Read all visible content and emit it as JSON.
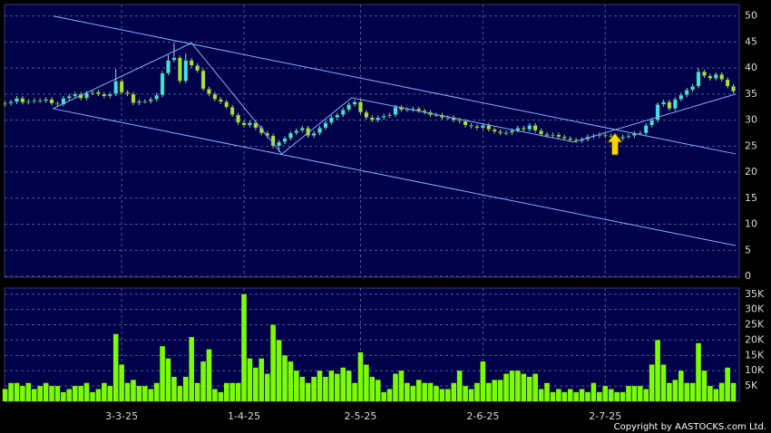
{
  "chart_data": [
    {
      "type": "candlestick",
      "open": [
        33.0,
        33.2,
        33.5,
        34.2,
        33.4,
        33.6,
        33.8,
        33.7,
        34.0,
        33.2,
        33.0,
        34.2,
        34.6,
        35.0,
        34.2,
        35.2,
        35.4,
        35.0,
        34.6,
        35.0,
        37.5,
        35.3,
        35.0,
        33.3,
        33.6,
        33.6,
        34.0,
        34.8,
        39.0,
        41.5,
        42.0,
        37.5,
        41.5,
        40.5,
        39.5,
        36.0,
        35.0,
        34.0,
        33.5,
        32.5,
        31.0,
        29.5,
        29.0,
        29.5,
        28.5,
        27.5,
        27.0,
        25.0,
        25.8,
        26.5,
        27.5,
        28.0,
        28.5,
        27.0,
        27.5,
        28.5,
        29.5,
        30.5,
        31.0,
        32.0,
        33.0,
        33.5,
        31.5,
        30.5,
        30.0,
        30.5,
        30.8,
        31.0,
        32.5,
        32.0,
        32.0,
        32.2,
        31.8,
        31.5,
        31.0,
        31.0,
        30.5,
        30.5,
        30.0,
        29.8,
        29.0,
        28.8,
        28.5,
        29.0,
        28.2,
        27.8,
        27.5,
        27.6,
        28.0,
        28.5,
        28.2,
        29.0,
        28.0,
        27.3,
        27.0,
        27.2,
        26.8,
        26.5,
        26.2,
        26.0,
        26.3,
        26.8,
        27.0,
        27.2,
        27.0,
        26.8,
        26.5,
        26.8,
        27.0,
        27.5,
        27.5,
        29.0,
        30.0,
        33.0,
        33.5,
        32.2,
        34.0,
        34.8,
        35.8,
        36.5,
        39.3,
        38.5,
        38.0,
        38.8,
        37.8,
        36.5
      ],
      "high": [
        33.6,
        33.9,
        34.6,
        34.6,
        34.0,
        34.2,
        34.2,
        34.4,
        34.4,
        33.6,
        34.6,
        35.0,
        35.4,
        35.4,
        35.6,
        35.8,
        35.8,
        35.4,
        35.4,
        39.8,
        37.9,
        35.7,
        35.4,
        34.0,
        34.0,
        34.4,
        35.2,
        39.4,
        42.5,
        44.8,
        42.4,
        42.8,
        41.9,
        40.9,
        39.9,
        36.4,
        35.4,
        34.4,
        33.9,
        32.9,
        31.4,
        29.9,
        29.9,
        29.9,
        28.9,
        27.9,
        27.4,
        26.2,
        26.9,
        27.9,
        28.4,
        28.9,
        28.9,
        27.9,
        28.9,
        29.9,
        30.9,
        31.4,
        32.4,
        33.4,
        33.9,
        33.9,
        31.9,
        30.9,
        30.9,
        31.2,
        31.4,
        32.9,
        32.9,
        32.4,
        32.6,
        32.6,
        32.2,
        31.9,
        31.4,
        31.4,
        30.9,
        30.9,
        30.4,
        30.2,
        29.4,
        29.2,
        29.4,
        29.4,
        28.6,
        28.2,
        28.0,
        28.4,
        28.9,
        28.9,
        29.4,
        29.4,
        28.4,
        27.7,
        27.6,
        27.6,
        27.2,
        26.9,
        26.6,
        26.7,
        27.2,
        27.4,
        27.6,
        27.6,
        27.4,
        27.2,
        27.2,
        27.4,
        27.9,
        27.9,
        29.4,
        30.4,
        33.4,
        33.9,
        33.9,
        34.4,
        35.2,
        36.2,
        36.9,
        40.0,
        39.7,
        38.9,
        39.2,
        39.2,
        38.2,
        36.9
      ],
      "low": [
        32.6,
        32.8,
        33.1,
        33.0,
        33.0,
        33.2,
        33.3,
        33.3,
        32.8,
        32.6,
        32.6,
        33.8,
        34.2,
        33.8,
        33.8,
        34.8,
        34.6,
        34.2,
        34.2,
        34.6,
        34.9,
        34.6,
        32.9,
        32.9,
        33.2,
        33.2,
        33.6,
        34.4,
        38.6,
        41.1,
        37.1,
        37.1,
        40.1,
        39.1,
        35.6,
        34.6,
        33.6,
        33.1,
        32.1,
        30.6,
        29.1,
        28.6,
        28.6,
        28.1,
        27.1,
        26.6,
        24.6,
        23.9,
        25.4,
        26.1,
        27.1,
        27.6,
        26.6,
        26.6,
        27.1,
        28.1,
        29.1,
        30.1,
        30.6,
        31.6,
        32.6,
        31.1,
        30.1,
        29.6,
        29.6,
        30.1,
        30.4,
        30.6,
        31.6,
        31.6,
        31.6,
        31.4,
        31.1,
        30.6,
        30.6,
        30.1,
        30.1,
        29.6,
        29.4,
        28.6,
        28.4,
        28.1,
        28.1,
        27.8,
        27.4,
        27.1,
        27.1,
        27.2,
        27.6,
        27.8,
        27.8,
        27.6,
        26.9,
        26.6,
        26.6,
        26.4,
        26.1,
        25.8,
        25.6,
        25.6,
        25.9,
        26.4,
        26.6,
        26.6,
        26.4,
        26.1,
        26.1,
        26.4,
        26.6,
        27.1,
        27.1,
        28.6,
        29.6,
        32.6,
        31.8,
        31.8,
        33.6,
        34.4,
        35.4,
        36.1,
        38.1,
        37.6,
        37.6,
        37.4,
        36.1,
        35.1
      ],
      "close": [
        33.2,
        33.5,
        34.2,
        33.4,
        33.6,
        33.8,
        33.7,
        34.0,
        33.2,
        33.0,
        34.2,
        34.6,
        35.0,
        34.2,
        35.2,
        35.4,
        35.0,
        34.6,
        35.0,
        37.5,
        35.3,
        35.0,
        33.3,
        33.6,
        33.6,
        34.0,
        34.8,
        39.0,
        41.5,
        42.0,
        37.5,
        41.5,
        40.5,
        39.5,
        36.0,
        35.0,
        34.0,
        33.5,
        32.5,
        31.0,
        29.5,
        29.0,
        29.5,
        28.5,
        27.5,
        27.0,
        25.0,
        25.8,
        26.5,
        27.5,
        28.0,
        28.5,
        27.0,
        27.5,
        28.5,
        29.5,
        30.5,
        31.0,
        32.0,
        33.0,
        33.5,
        31.5,
        30.5,
        30.0,
        30.5,
        30.8,
        31.0,
        32.5,
        32.0,
        32.0,
        32.2,
        31.8,
        31.5,
        31.0,
        31.0,
        30.5,
        30.5,
        30.0,
        29.8,
        29.0,
        28.8,
        28.5,
        29.0,
        28.2,
        27.8,
        27.5,
        27.6,
        28.0,
        28.5,
        28.2,
        29.0,
        28.0,
        27.3,
        27.0,
        27.2,
        26.8,
        26.5,
        26.2,
        26.0,
        26.3,
        26.8,
        27.0,
        27.2,
        27.0,
        26.8,
        26.5,
        26.8,
        27.0,
        27.5,
        27.5,
        29.0,
        30.0,
        33.0,
        33.5,
        32.2,
        34.0,
        34.8,
        35.8,
        36.5,
        39.3,
        38.5,
        38.0,
        38.8,
        37.8,
        36.5,
        35.5
      ],
      "up_color": "#40e0f0",
      "down_color": "#a8e040",
      "xlim": [
        -0.1,
        126
      ],
      "ylim": [
        0,
        52.2
      ],
      "yticks": [
        0,
        5,
        10,
        15,
        20,
        25,
        30,
        35,
        40,
        45,
        50
      ],
      "grid": true,
      "trend_lines": [
        [
          [
            8.2,
            50
          ],
          [
            125.4,
            23.5
          ]
        ],
        [
          [
            8.2,
            32.2
          ],
          [
            125.4,
            5.9
          ]
        ],
        [
          [
            8.2,
            32.2
          ],
          [
            32.0,
            44.8
          ],
          [
            47.5,
            23.5
          ],
          [
            59.5,
            34.3
          ],
          [
            97.6,
            25.8
          ],
          [
            125.4,
            35
          ]
        ]
      ],
      "trend_color": "#7fb0ff"
    },
    {
      "type": "bar",
      "values": [
        4000,
        6000,
        6000,
        5000,
        6000,
        4000,
        5000,
        6000,
        5000,
        5000,
        3000,
        4000,
        5000,
        5000,
        6000,
        3000,
        4000,
        6000,
        5000,
        22000,
        12000,
        6000,
        7000,
        5000,
        5000,
        4000,
        6000,
        18000,
        14000,
        8000,
        5000,
        8000,
        21000,
        6000,
        13000,
        17000,
        4000,
        3000,
        6000,
        6000,
        6000,
        35000,
        14000,
        11000,
        14000,
        9000,
        25000,
        20000,
        15000,
        13000,
        10000,
        8000,
        6000,
        8000,
        10000,
        8000,
        10000,
        9000,
        11000,
        10000,
        6000,
        16000,
        12000,
        8000,
        7000,
        3000,
        4000,
        9000,
        10000,
        6000,
        5000,
        7000,
        6000,
        6000,
        5000,
        4000,
        4000,
        6000,
        10000,
        5000,
        4000,
        6000,
        13000,
        6000,
        7000,
        7000,
        9000,
        10000,
        10000,
        9000,
        8000,
        9000,
        4000,
        6000,
        3000,
        4000,
        3000,
        4000,
        3000,
        4000,
        3000,
        6000,
        3000,
        5000,
        4000,
        3000,
        3000,
        5000,
        5000,
        5000,
        4000,
        12000,
        20000,
        12000,
        6000,
        7000,
        10000,
        6000,
        6000,
        19000,
        10000,
        5000,
        4000,
        6000,
        11000,
        6000
      ],
      "color": "#7cfc00",
      "xlim": [
        -0.1,
        126
      ],
      "ylim": [
        0,
        37000
      ],
      "yticks": [
        {
          "value": 5000,
          "label": "5K"
        },
        {
          "value": 10000,
          "label": "10K"
        },
        {
          "value": 15000,
          "label": "15K"
        },
        {
          "value": 20000,
          "label": "20K"
        },
        {
          "value": 25000,
          "label": "25K"
        },
        {
          "value": 30000,
          "label": "30K"
        },
        {
          "value": 35000,
          "label": "35K"
        }
      ],
      "xticks": [
        {
          "value": 20,
          "label": "3-3-25"
        },
        {
          "value": 41,
          "label": "1-4-25"
        },
        {
          "value": 61,
          "label": "2-5-25"
        },
        {
          "value": 82,
          "label": "2-6-25"
        },
        {
          "value": 103,
          "label": "2-7-25"
        }
      ],
      "grid": true,
      "footer": "Copyright by AASTOCKS.com Ltd."
    }
  ]
}
